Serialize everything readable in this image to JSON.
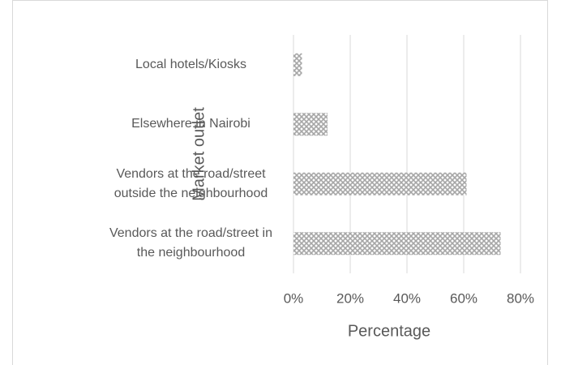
{
  "chart_data": {
    "type": "hbar",
    "categories": [
      "Local hotels/Kiosks",
      "Elsewhere in Nairobi",
      "Vendors at the road/street outside the neighbourhood",
      "Vendors at the road/street in the neighbourhood"
    ],
    "values": [
      3,
      12,
      61,
      73
    ],
    "color": "#a6a6a6",
    "xlim": [
      0,
      80
    ],
    "xticks": [
      {
        "value": 0,
        "label": "0%"
      },
      {
        "value": 20,
        "label": "20%"
      },
      {
        "value": 40,
        "label": "40%"
      },
      {
        "value": 60,
        "label": "60%"
      },
      {
        "value": 80,
        "label": "80%"
      }
    ],
    "x_label": "Percentage",
    "y_label": "Market outlet",
    "grid": true
  }
}
